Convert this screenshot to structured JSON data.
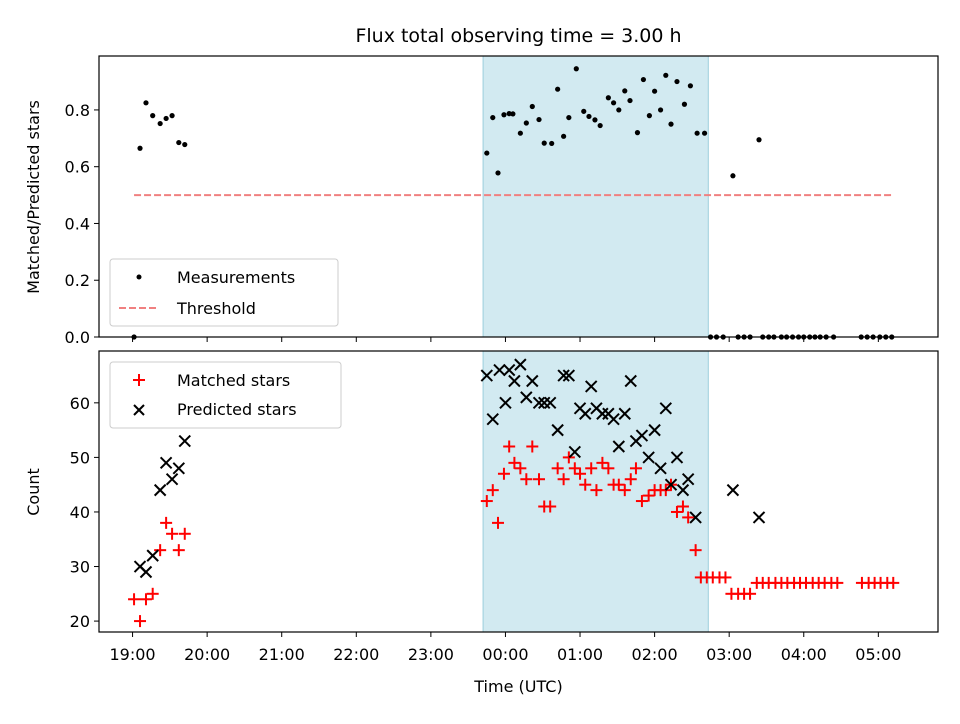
{
  "chart_data": [
    {
      "panel": "top",
      "type": "scatter",
      "title": "Flux total observing time = 3.00 h",
      "xlabel": "",
      "ylabel": "Matched/Predicted stars",
      "xlim": [
        18.55,
        29.8
      ],
      "ylim": [
        0,
        0.99
      ],
      "yticks": [
        0.0,
        0.2,
        0.4,
        0.6,
        0.8
      ],
      "ytick_labels": [
        "0.0",
        "0.2",
        "0.4",
        "0.6",
        "0.8"
      ],
      "xticks": [
        19,
        20,
        21,
        22,
        23,
        24,
        25,
        26,
        27,
        28,
        29
      ],
      "shaded_interval": {
        "x": [
          23.7,
          26.72
        ],
        "color": "#add8e6"
      },
      "legend": {
        "placement": "lower-left",
        "entries": [
          "Measurements",
          "Threshold"
        ]
      },
      "series": [
        {
          "name": "Measurements",
          "marker": "dot",
          "color": "#000000",
          "points": [
            [
              19.02,
              0.0
            ],
            [
              19.1,
              0.665
            ],
            [
              19.18,
              0.825
            ],
            [
              19.27,
              0.78
            ],
            [
              19.37,
              0.752
            ],
            [
              19.45,
              0.77
            ],
            [
              19.53,
              0.78
            ],
            [
              19.62,
              0.685
            ],
            [
              19.7,
              0.678
            ],
            [
              23.75,
              0.648
            ],
            [
              23.83,
              0.773
            ],
            [
              23.9,
              0.578
            ],
            [
              23.98,
              0.783
            ],
            [
              24.05,
              0.787
            ],
            [
              24.1,
              0.786
            ],
            [
              24.2,
              0.718
            ],
            [
              24.28,
              0.754
            ],
            [
              24.36,
              0.812
            ],
            [
              24.45,
              0.766
            ],
            [
              24.52,
              0.683
            ],
            [
              24.62,
              0.682
            ],
            [
              24.7,
              0.873
            ],
            [
              24.78,
              0.707
            ],
            [
              24.85,
              0.773
            ],
            [
              24.95,
              0.945
            ],
            [
              25.05,
              0.795
            ],
            [
              25.12,
              0.777
            ],
            [
              25.2,
              0.765
            ],
            [
              25.27,
              0.745
            ],
            [
              25.38,
              0.843
            ],
            [
              25.45,
              0.825
            ],
            [
              25.52,
              0.8
            ],
            [
              25.6,
              0.867
            ],
            [
              25.67,
              0.833
            ],
            [
              25.77,
              0.72
            ],
            [
              25.85,
              0.907
            ],
            [
              25.93,
              0.78
            ],
            [
              26.0,
              0.866
            ],
            [
              26.08,
              0.8
            ],
            [
              26.15,
              0.922
            ],
            [
              26.22,
              0.75
            ],
            [
              26.3,
              0.9
            ],
            [
              26.4,
              0.82
            ],
            [
              26.48,
              0.885
            ],
            [
              26.57,
              0.718
            ],
            [
              26.67,
              0.718
            ],
            [
              26.75,
              0.0
            ],
            [
              26.83,
              0.0
            ],
            [
              26.92,
              0.0
            ],
            [
              27.05,
              0.568
            ],
            [
              27.12,
              0.0
            ],
            [
              27.2,
              0.0
            ],
            [
              27.28,
              0.0
            ],
            [
              27.4,
              0.695
            ],
            [
              27.45,
              0.0
            ],
            [
              27.53,
              0.0
            ],
            [
              27.6,
              0.0
            ],
            [
              27.7,
              0.0
            ],
            [
              27.77,
              0.0
            ],
            [
              27.85,
              0.0
            ],
            [
              27.93,
              0.0
            ],
            [
              28.0,
              0.0
            ],
            [
              28.08,
              0.0
            ],
            [
              28.15,
              0.0
            ],
            [
              28.22,
              0.0
            ],
            [
              28.3,
              0.0
            ],
            [
              28.4,
              0.0
            ],
            [
              28.77,
              0.0
            ],
            [
              28.85,
              0.0
            ],
            [
              28.93,
              0.0
            ],
            [
              29.02,
              0.0
            ],
            [
              29.1,
              0.0
            ],
            [
              29.18,
              0.0
            ]
          ]
        },
        {
          "name": "Threshold",
          "marker": "dashed-line",
          "color": "#f08080",
          "points": [
            [
              19.02,
              0.5
            ],
            [
              29.18,
              0.5
            ]
          ]
        }
      ]
    },
    {
      "panel": "bottom",
      "type": "scatter",
      "title": "",
      "xlabel": "Time (UTC)",
      "ylabel": "Count",
      "xlim": [
        18.55,
        29.8
      ],
      "ylim": [
        18,
        69.5
      ],
      "yticks": [
        20,
        30,
        40,
        50,
        60
      ],
      "ytick_labels": [
        "20",
        "30",
        "40",
        "50",
        "60"
      ],
      "xticks": [
        19,
        20,
        21,
        22,
        23,
        24,
        25,
        26,
        27,
        28,
        29
      ],
      "xtick_labels": [
        "19:00",
        "20:00",
        "21:00",
        "22:00",
        "23:00",
        "00:00",
        "01:00",
        "02:00",
        "03:00",
        "04:00",
        "05:00"
      ],
      "shaded_interval": {
        "x": [
          23.7,
          26.72
        ],
        "color": "#add8e6"
      },
      "legend": {
        "placement": "upper-left",
        "entries": [
          "Matched stars",
          "Predicted stars"
        ]
      },
      "series": [
        {
          "name": "Matched stars",
          "marker": "plus",
          "color": "#ff0000",
          "points": [
            [
              19.02,
              24
            ],
            [
              19.1,
              20
            ],
            [
              19.18,
              24
            ],
            [
              19.27,
              25
            ],
            [
              19.37,
              33
            ],
            [
              19.45,
              38
            ],
            [
              19.53,
              36
            ],
            [
              19.62,
              33
            ],
            [
              19.7,
              36
            ],
            [
              23.75,
              42
            ],
            [
              23.83,
              44
            ],
            [
              23.9,
              38
            ],
            [
              23.98,
              47
            ],
            [
              24.05,
              52
            ],
            [
              24.12,
              49
            ],
            [
              24.2,
              48
            ],
            [
              24.28,
              46
            ],
            [
              24.36,
              52
            ],
            [
              24.45,
              46
            ],
            [
              24.52,
              41
            ],
            [
              24.6,
              41
            ],
            [
              24.7,
              48
            ],
            [
              24.78,
              46
            ],
            [
              24.85,
              50
            ],
            [
              24.93,
              48
            ],
            [
              25.0,
              47
            ],
            [
              25.07,
              45
            ],
            [
              25.15,
              48
            ],
            [
              25.22,
              44
            ],
            [
              25.3,
              49
            ],
            [
              25.38,
              48
            ],
            [
              25.45,
              45
            ],
            [
              25.52,
              45
            ],
            [
              25.6,
              44
            ],
            [
              25.68,
              46
            ],
            [
              25.75,
              48
            ],
            [
              25.83,
              42
            ],
            [
              25.92,
              43
            ],
            [
              26.0,
              44
            ],
            [
              26.08,
              44
            ],
            [
              26.15,
              44
            ],
            [
              26.22,
              45
            ],
            [
              26.3,
              40
            ],
            [
              26.38,
              41
            ],
            [
              26.45,
              39
            ],
            [
              26.55,
              33
            ],
            [
              26.62,
              28
            ],
            [
              26.7,
              28
            ],
            [
              26.78,
              28
            ],
            [
              26.87,
              28
            ],
            [
              26.95,
              28
            ],
            [
              27.03,
              25
            ],
            [
              27.12,
              25
            ],
            [
              27.2,
              25
            ],
            [
              27.28,
              25
            ],
            [
              27.37,
              27
            ],
            [
              27.45,
              27
            ],
            [
              27.53,
              27
            ],
            [
              27.62,
              27
            ],
            [
              27.7,
              27
            ],
            [
              27.78,
              27
            ],
            [
              27.87,
              27
            ],
            [
              27.95,
              27
            ],
            [
              28.03,
              27
            ],
            [
              28.12,
              27
            ],
            [
              28.2,
              27
            ],
            [
              28.28,
              27
            ],
            [
              28.37,
              27
            ],
            [
              28.45,
              27
            ],
            [
              28.78,
              27
            ],
            [
              28.87,
              27
            ],
            [
              28.95,
              27
            ],
            [
              29.03,
              27
            ],
            [
              29.12,
              27
            ],
            [
              29.2,
              27
            ]
          ]
        },
        {
          "name": "Predicted stars",
          "marker": "x",
          "color": "#000000",
          "points": [
            [
              19.1,
              30
            ],
            [
              19.18,
              29
            ],
            [
              19.27,
              32
            ],
            [
              19.37,
              44
            ],
            [
              19.45,
              49
            ],
            [
              19.53,
              46
            ],
            [
              19.62,
              48
            ],
            [
              19.7,
              53
            ],
            [
              23.75,
              65
            ],
            [
              23.83,
              57
            ],
            [
              23.92,
              66
            ],
            [
              24.0,
              60
            ],
            [
              24.05,
              66
            ],
            [
              24.12,
              64
            ],
            [
              24.2,
              67
            ],
            [
              24.28,
              61
            ],
            [
              24.36,
              64
            ],
            [
              24.45,
              60
            ],
            [
              24.52,
              60
            ],
            [
              24.6,
              60
            ],
            [
              24.7,
              55
            ],
            [
              24.78,
              65
            ],
            [
              24.85,
              65
            ],
            [
              24.93,
              51
            ],
            [
              25.0,
              59
            ],
            [
              25.07,
              58
            ],
            [
              25.15,
              63
            ],
            [
              25.22,
              59
            ],
            [
              25.3,
              58
            ],
            [
              25.38,
              58
            ],
            [
              25.45,
              57
            ],
            [
              25.52,
              52
            ],
            [
              25.6,
              58
            ],
            [
              25.68,
              64
            ],
            [
              25.75,
              53
            ],
            [
              25.83,
              54
            ],
            [
              25.92,
              50
            ],
            [
              26.0,
              55
            ],
            [
              26.08,
              48
            ],
            [
              26.15,
              59
            ],
            [
              26.22,
              45
            ],
            [
              26.3,
              50
            ],
            [
              26.38,
              44
            ],
            [
              26.45,
              46
            ],
            [
              26.55,
              39
            ],
            [
              27.05,
              44
            ],
            [
              27.4,
              39
            ]
          ]
        }
      ]
    }
  ]
}
